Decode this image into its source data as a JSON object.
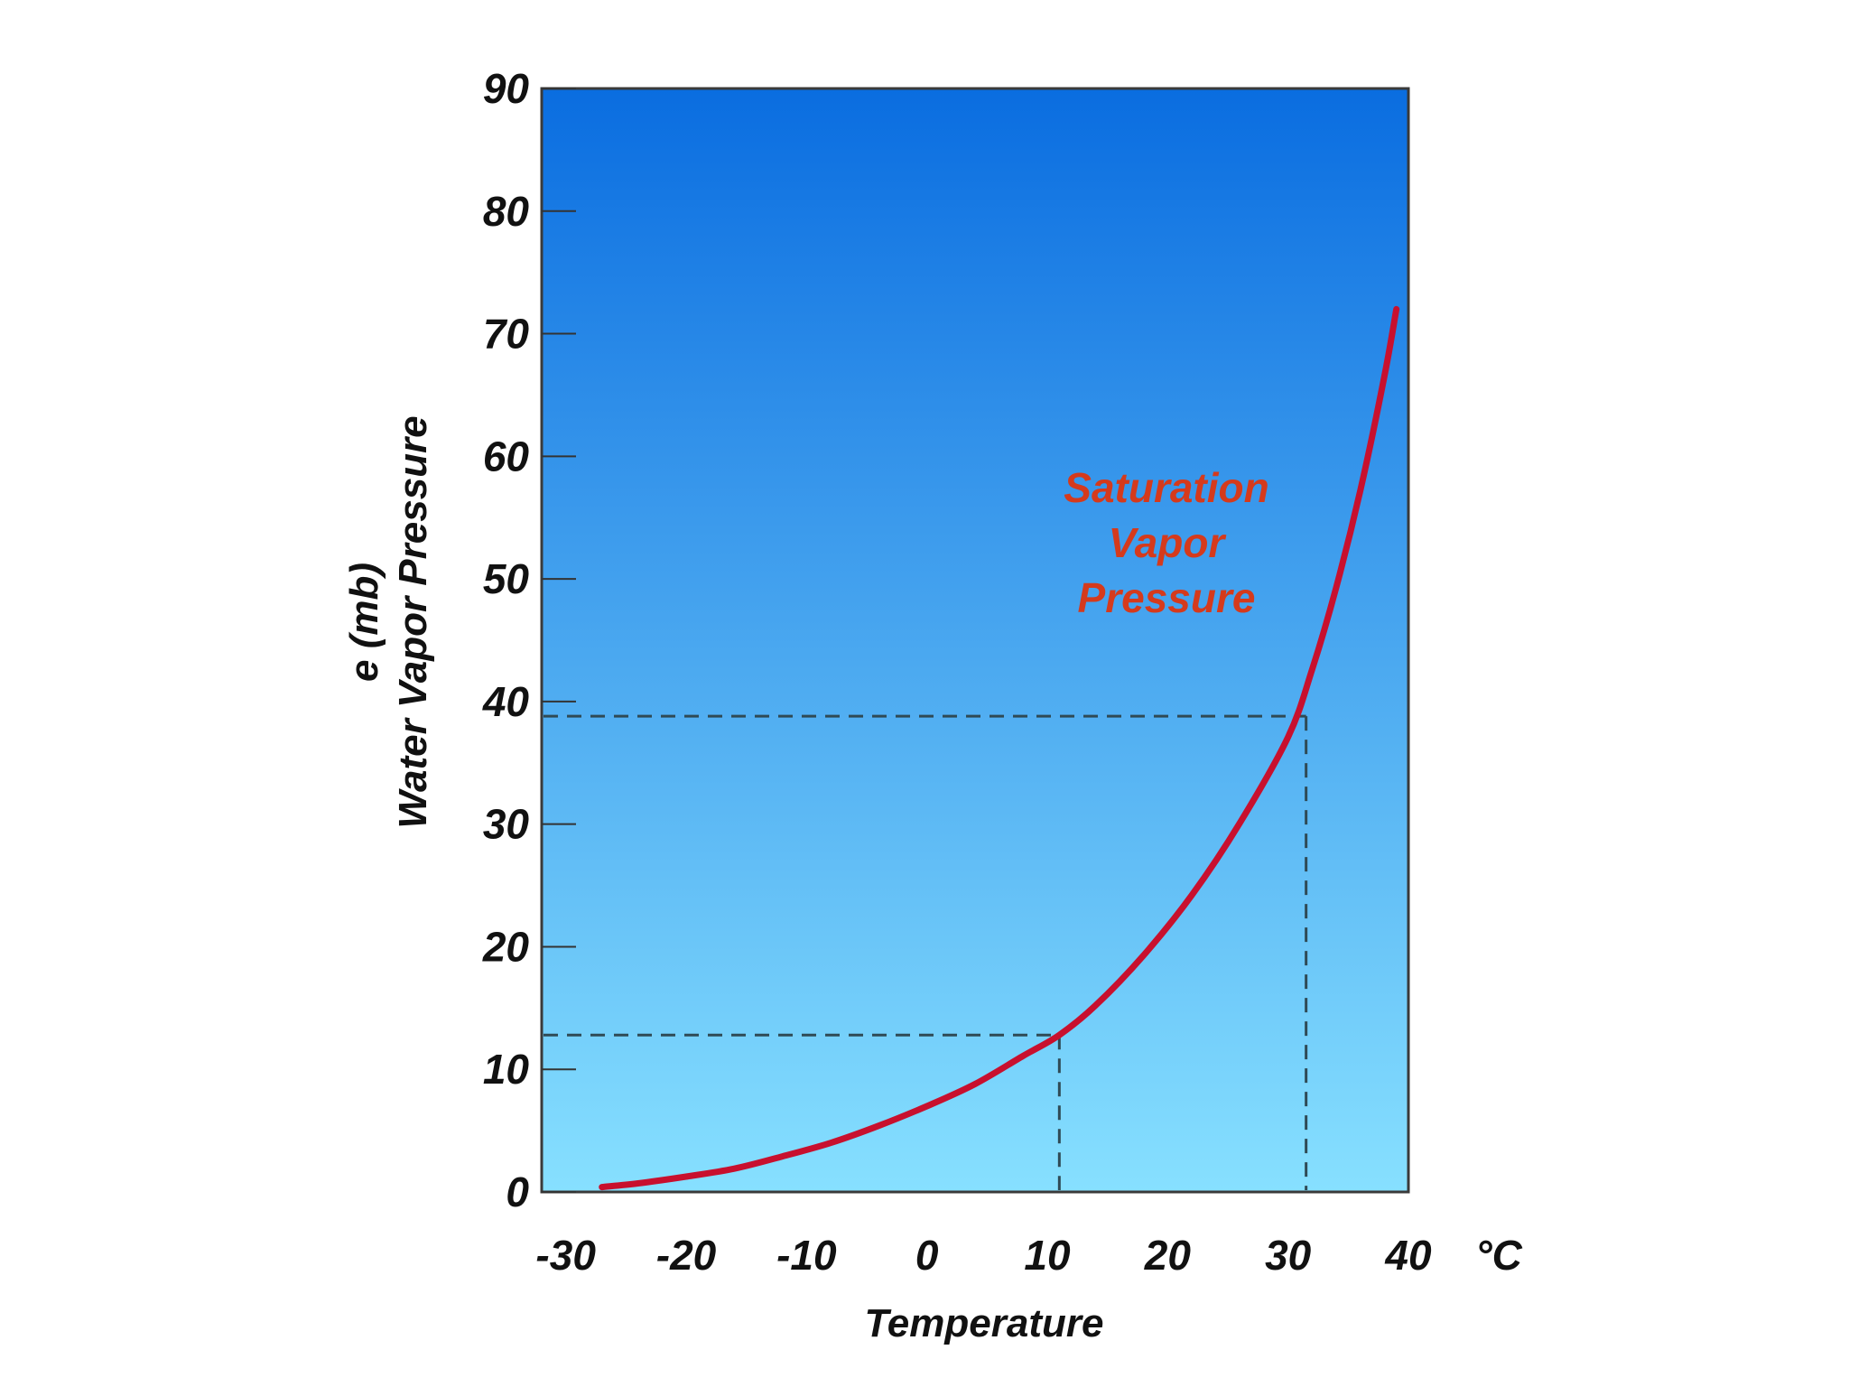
{
  "chart_data": {
    "type": "line",
    "xlabel": "Temperature",
    "x_unit": "°C",
    "ylabel_lines": [
      "e (mb)",
      "Water Vapor Pressure"
    ],
    "x_ticks": [
      -30,
      -20,
      -10,
      0,
      10,
      20,
      30,
      40
    ],
    "x_tick_labels": [
      "-30",
      "-20",
      "-10",
      "0",
      "10",
      "20",
      "30",
      "40"
    ],
    "y_ticks": [
      0,
      10,
      20,
      30,
      40,
      50,
      60,
      70,
      80,
      90
    ],
    "y_tick_labels": [
      "0",
      "10",
      "20",
      "30",
      "40",
      "50",
      "60",
      "70",
      "80",
      "90"
    ],
    "xlim": [
      -32,
      40
    ],
    "ylim": [
      0,
      90
    ],
    "grid": false,
    "series": [
      {
        "name": "Saturation Vapor Pressure",
        "label_lines": [
          "Saturation",
          "Vapor",
          "Pressure"
        ],
        "color": "#c8102e",
        "x": [
          -27,
          -24,
          -20,
          -16,
          -12,
          -8,
          -4,
          0,
          4,
          8,
          11,
          14,
          18,
          22,
          26,
          30,
          32,
          34,
          36,
          38,
          39
        ],
        "y": [
          0.4,
          0.7,
          1.25,
          1.9,
          2.9,
          4.0,
          5.4,
          7.0,
          8.8,
          11.1,
          12.8,
          15.2,
          19.3,
          24.2,
          30.1,
          37.1,
          42.6,
          49.3,
          57.2,
          66.5,
          72.0
        ]
      }
    ],
    "reference_lines": [
      {
        "x": 11,
        "y": 12.8
      },
      {
        "x": 31.5,
        "y": 38.8
      }
    ],
    "colors": {
      "background_top": "#0a6de0",
      "background_bottom": "#87e0ff",
      "frame": "#3a3a3a",
      "reference_line": "#2f4a55",
      "label_text": "#d53a1c"
    }
  }
}
